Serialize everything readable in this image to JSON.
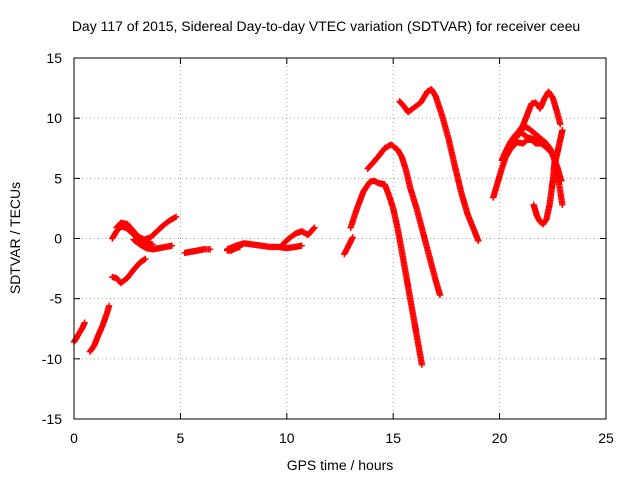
{
  "chart_data": {
    "type": "scatter",
    "title": "Day 117 of 2015, Sidereal Day-to-day VTEC variation (SDTVAR) for receiver ceeu",
    "xlabel": "GPS time / hours",
    "ylabel": "SDTVAR / TECUs",
    "xlim": [
      0,
      25
    ],
    "ylim": [
      -15,
      15
    ],
    "xticks": [
      "0",
      "5",
      "10",
      "15",
      "20",
      "25"
    ],
    "yticks": [
      "15",
      "10",
      "5",
      "0",
      "-5",
      "-10",
      "-15"
    ],
    "grid": true,
    "marker": "plus",
    "color": "#ff0000",
    "series": [
      {
        "x": [
          0.0,
          0.2,
          0.4,
          0.5
        ],
        "y": [
          -8.6,
          -8.0,
          -7.4,
          -7.0
        ]
      },
      {
        "x": [
          0.75,
          0.95,
          1.15,
          1.35,
          1.55,
          1.65
        ],
        "y": [
          -9.4,
          -8.9,
          -8.0,
          -7.2,
          -6.2,
          -5.6
        ]
      },
      {
        "x": [
          1.8,
          2.0,
          2.2,
          2.5,
          2.8,
          3.1,
          3.35
        ],
        "y": [
          -3.2,
          -3.3,
          -3.7,
          -3.3,
          -2.6,
          -2.0,
          -1.7
        ]
      },
      {
        "x": [
          1.8,
          2.0,
          2.2,
          2.45,
          2.7,
          2.95,
          3.2,
          3.45,
          3.7
        ],
        "y": [
          0.0,
          0.6,
          1.0,
          0.9,
          0.5,
          0.1,
          -0.2,
          -0.4,
          -0.5
        ]
      },
      {
        "x": [
          2.0,
          2.2,
          2.5,
          2.8,
          3.0,
          3.3,
          3.6,
          3.9,
          4.2,
          4.5,
          4.8
        ],
        "y": [
          0.9,
          1.3,
          1.2,
          0.6,
          0.2,
          -0.1,
          0.1,
          0.6,
          1.1,
          1.5,
          1.8
        ]
      },
      {
        "x": [
          2.8,
          3.1,
          3.4,
          3.7,
          4.0,
          4.3,
          4.6
        ],
        "y": [
          -0.1,
          -0.5,
          -0.8,
          -0.9,
          -0.8,
          -0.7,
          -0.6
        ]
      },
      {
        "x": [
          5.2,
          5.5,
          5.8,
          6.1,
          6.4
        ],
        "y": [
          -1.2,
          -1.1,
          -1.0,
          -0.9,
          -0.9
        ]
      },
      {
        "x": [
          7.2,
          7.6,
          8.0,
          8.4,
          8.8,
          9.2,
          9.6,
          10.0,
          10.4,
          10.7
        ],
        "y": [
          -0.9,
          -0.6,
          -0.4,
          -0.5,
          -0.6,
          -0.7,
          -0.7,
          -0.8,
          -0.7,
          -0.6
        ]
      },
      {
        "x": [
          9.8,
          10.1,
          10.4,
          10.7,
          11.0,
          11.3
        ],
        "y": [
          -0.5,
          0.0,
          0.4,
          0.6,
          0.3,
          0.9
        ]
      },
      {
        "x": [
          7.2,
          7.4,
          7.6,
          7.8
        ],
        "y": [
          -1.0,
          -1.0,
          -0.8,
          -0.7
        ]
      },
      {
        "x": [
          12.7,
          12.9,
          13.1
        ],
        "y": [
          -1.3,
          -0.6,
          0.1
        ]
      },
      {
        "x": [
          13.0,
          13.3,
          13.6,
          13.9,
          14.1,
          14.3,
          14.6,
          14.8,
          15.0,
          15.2,
          15.4,
          15.6,
          15.8,
          16.0,
          16.2,
          16.35
        ],
        "y": [
          0.9,
          2.5,
          3.9,
          4.7,
          4.8,
          4.6,
          4.5,
          3.6,
          2.5,
          0.9,
          -1.0,
          -3.0,
          -5.0,
          -7.0,
          -9.0,
          -10.5
        ]
      },
      {
        "x": [
          13.8,
          14.0,
          14.3,
          14.6,
          14.9,
          15.2,
          15.4,
          15.6,
          15.8,
          16.1,
          16.4,
          16.7,
          17.0,
          17.2
        ],
        "y": [
          5.8,
          6.2,
          6.8,
          7.5,
          7.8,
          7.4,
          6.8,
          5.7,
          4.2,
          2.5,
          0.5,
          -1.5,
          -3.5,
          -4.7
        ]
      },
      {
        "x": [
          15.3,
          15.5,
          15.7,
          16.0,
          16.3,
          16.6,
          16.8,
          17.0,
          17.3,
          17.6,
          17.9,
          18.2,
          18.5,
          18.8,
          19.0
        ],
        "y": [
          11.4,
          11.0,
          10.5,
          10.9,
          11.3,
          12.2,
          12.4,
          11.8,
          10.2,
          8.3,
          6.0,
          3.8,
          2.0,
          0.7,
          -0.2
        ]
      },
      {
        "x": [
          19.7,
          19.9,
          20.1,
          20.3,
          20.5,
          20.8,
          21.1,
          21.3,
          21.5,
          21.7,
          21.9
        ],
        "y": [
          3.4,
          4.6,
          5.8,
          6.8,
          7.4,
          8.0,
          7.9,
          8.2,
          8.2,
          7.9,
          7.9
        ]
      },
      {
        "x": [
          20.1,
          20.3,
          20.5,
          20.7,
          20.9,
          21.1,
          21.3,
          21.5,
          21.7,
          21.9,
          22.1,
          22.3,
          22.5,
          22.7,
          22.9
        ],
        "y": [
          6.5,
          7.3,
          8.0,
          8.5,
          8.9,
          8.7,
          8.4,
          8.3,
          8.2,
          8.0,
          7.7,
          7.4,
          7.0,
          6.0,
          4.8
        ]
      },
      {
        "x": [
          20.5,
          20.7,
          20.9,
          21.1,
          21.3,
          21.5,
          21.7,
          21.9,
          22.1,
          22.3,
          22.5,
          22.7,
          22.85
        ],
        "y": [
          7.8,
          8.4,
          8.9,
          9.4,
          10.3,
          11.2,
          11.3,
          10.8,
          11.6,
          12.2,
          11.7,
          10.5,
          9.5
        ]
      },
      {
        "x": [
          20.8,
          21.0,
          21.2,
          21.4,
          21.6,
          21.8,
          22.0,
          22.2,
          22.4,
          22.6,
          22.8,
          22.95
        ],
        "y": [
          8.4,
          9.0,
          9.3,
          9.1,
          8.8,
          8.5,
          8.2,
          7.9,
          7.4,
          6.4,
          4.5,
          2.8
        ]
      },
      {
        "x": [
          21.6,
          21.75,
          21.9,
          22.05,
          22.2,
          22.35,
          22.5,
          22.6
        ],
        "y": [
          2.8,
          1.9,
          1.4,
          1.2,
          1.6,
          2.8,
          4.8,
          6.6
        ]
      },
      {
        "x": [
          22.55,
          22.7,
          22.85,
          22.95
        ],
        "y": [
          5.8,
          7.0,
          8.2,
          9.0
        ]
      }
    ]
  }
}
